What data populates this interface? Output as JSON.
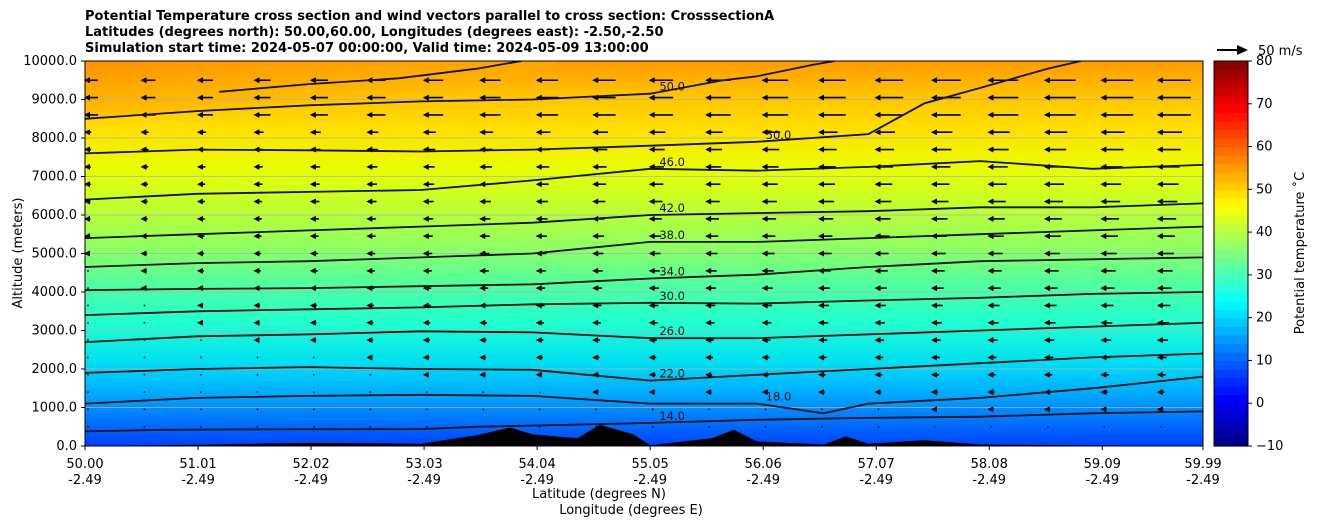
{
  "chart_data": {
    "type": "contourf",
    "title_lines": [
      "Potential Temperature cross section and wind vectors parallel to cross section: CrosssectionA",
      "Latitudes (degrees north): 50.00,60.00, Longitudes (degrees east): -2.50,-2.50",
      "Simulation start time: 2024-05-07 00:00:00, Valid time: 2024-05-09 13:00:00"
    ],
    "ylabel": "Altitude (meters)",
    "xlabel_lat": "Latitude (degrees N)",
    "xlabel_lon": "Longitude (degrees E)",
    "ylim": [
      0,
      10000
    ],
    "xlim": [
      50.0,
      59.99
    ],
    "y_ticks": [
      "0.0",
      "1000.0",
      "2000.0",
      "3000.0",
      "4000.0",
      "5000.0",
      "6000.0",
      "7000.0",
      "8000.0",
      "9000.0",
      "10000.0"
    ],
    "x_ticks_lat": [
      "50.00",
      "51.01",
      "52.02",
      "53.03",
      "54.04",
      "55.05",
      "56.06",
      "57.07",
      "58.08",
      "59.09",
      "59.99"
    ],
    "x_ticks_lon": [
      "-2.49",
      "-2.49",
      "-2.49",
      "-2.49",
      "-2.49",
      "-2.49",
      "-2.49",
      "-2.49",
      "-2.49",
      "-2.49",
      "-2.49"
    ],
    "grid": "horizontal",
    "colorbar": {
      "label": "Potential temperature ˚C",
      "range": [
        -10,
        80
      ],
      "ticks": [
        "−10",
        "0",
        "10",
        "20",
        "30",
        "40",
        "50",
        "60",
        "70",
        "80"
      ],
      "colormap": "jet"
    },
    "quiver_key": "50 m/s",
    "contours": [
      {
        "level": 14.0,
        "label": "14.0",
        "points": [
          [
            50.0,
            380
          ],
          [
            50.7,
            420
          ],
          [
            51.5,
            430
          ],
          [
            53.0,
            440
          ],
          [
            53.5,
            500
          ],
          [
            54.5,
            560
          ],
          [
            55.05,
            600
          ],
          [
            56.0,
            680
          ],
          [
            57.0,
            730
          ],
          [
            58.0,
            760
          ],
          [
            59.0,
            850
          ],
          [
            59.99,
            900
          ]
        ]
      },
      {
        "level": 18.0,
        "label": "18.0",
        "points": [
          [
            50.0,
            1100
          ],
          [
            51.0,
            1250
          ],
          [
            52.0,
            1300
          ],
          [
            53.0,
            1330
          ],
          [
            54.0,
            1300
          ],
          [
            55.05,
            1100
          ],
          [
            56.0,
            1100
          ],
          [
            56.6,
            850
          ],
          [
            57.0,
            1100
          ],
          [
            58.0,
            1250
          ],
          [
            59.0,
            1500
          ],
          [
            59.99,
            1800
          ]
        ]
      },
      {
        "level": 22.0,
        "label": "22.0",
        "points": [
          [
            50.0,
            1900
          ],
          [
            51.0,
            2000
          ],
          [
            52.0,
            2050
          ],
          [
            53.0,
            2000
          ],
          [
            54.0,
            1980
          ],
          [
            55.05,
            1700
          ],
          [
            56.0,
            1850
          ],
          [
            57.0,
            2000
          ],
          [
            58.0,
            2150
          ],
          [
            59.0,
            2300
          ],
          [
            59.99,
            2400
          ]
        ]
      },
      {
        "level": 26.0,
        "label": "26.0",
        "points": [
          [
            50.0,
            2700
          ],
          [
            51.0,
            2850
          ],
          [
            52.0,
            2900
          ],
          [
            53.0,
            2980
          ],
          [
            54.0,
            2950
          ],
          [
            55.05,
            2800
          ],
          [
            56.0,
            2800
          ],
          [
            57.0,
            2900
          ],
          [
            58.0,
            3000
          ],
          [
            59.0,
            3100
          ],
          [
            59.99,
            3200
          ]
        ]
      },
      {
        "level": 30.0,
        "label": "30.0",
        "points": [
          [
            50.0,
            3400
          ],
          [
            51.0,
            3500
          ],
          [
            52.0,
            3550
          ],
          [
            53.0,
            3600
          ],
          [
            54.0,
            3680
          ],
          [
            55.05,
            3720
          ],
          [
            56.0,
            3700
          ],
          [
            57.0,
            3780
          ],
          [
            58.0,
            3850
          ],
          [
            59.0,
            3950
          ],
          [
            59.99,
            4000
          ]
        ]
      },
      {
        "level": 34.0,
        "label": "34.0",
        "points": [
          [
            50.0,
            4050
          ],
          [
            51.0,
            4080
          ],
          [
            52.0,
            4100
          ],
          [
            53.0,
            4150
          ],
          [
            54.0,
            4200
          ],
          [
            55.05,
            4350
          ],
          [
            56.0,
            4450
          ],
          [
            57.0,
            4650
          ],
          [
            58.0,
            4800
          ],
          [
            59.0,
            4850
          ],
          [
            59.99,
            4900
          ]
        ]
      },
      {
        "level": 38.0,
        "label": "38.0",
        "points": [
          [
            50.0,
            4650
          ],
          [
            51.0,
            4750
          ],
          [
            52.0,
            4800
          ],
          [
            53.0,
            4900
          ],
          [
            54.0,
            5000
          ],
          [
            55.05,
            5300
          ],
          [
            56.0,
            5300
          ],
          [
            57.0,
            5400
          ],
          [
            58.0,
            5500
          ],
          [
            59.0,
            5600
          ],
          [
            59.99,
            5700
          ]
        ]
      },
      {
        "level": 42.0,
        "label": "42.0",
        "points": [
          [
            50.0,
            5400
          ],
          [
            51.0,
            5500
          ],
          [
            52.0,
            5600
          ],
          [
            53.0,
            5700
          ],
          [
            54.0,
            5800
          ],
          [
            55.05,
            6000
          ],
          [
            56.0,
            6050
          ],
          [
            57.0,
            6100
          ],
          [
            58.0,
            6200
          ],
          [
            59.0,
            6200
          ],
          [
            59.99,
            6300
          ]
        ]
      },
      {
        "level": 46.0,
        "label": "46.0",
        "points": [
          [
            50.0,
            6400
          ],
          [
            51.0,
            6550
          ],
          [
            52.0,
            6600
          ],
          [
            53.0,
            6650
          ],
          [
            54.0,
            6900
          ],
          [
            55.05,
            7200
          ],
          [
            56.0,
            7150
          ],
          [
            57.0,
            7250
          ],
          [
            58.0,
            7400
          ],
          [
            59.0,
            7200
          ],
          [
            59.99,
            7300
          ]
        ]
      },
      {
        "level": 50.0,
        "label": "50.0",
        "points": [
          [
            50.0,
            7600
          ],
          [
            51.0,
            7700
          ],
          [
            52.0,
            7680
          ],
          [
            53.0,
            7650
          ],
          [
            54.0,
            7700
          ],
          [
            55.05,
            7800
          ],
          [
            56.0,
            7900
          ],
          [
            57.0,
            8100
          ],
          [
            57.5,
            8900
          ],
          [
            58.0,
            9300
          ],
          [
            58.6,
            9800
          ],
          [
            58.9,
            10000
          ]
        ]
      },
      {
        "level": 50.0,
        "label": "50.0",
        "points": [
          [
            50.0,
            8500
          ],
          [
            51.0,
            8700
          ],
          [
            52.0,
            8850
          ],
          [
            53.0,
            8950
          ],
          [
            54.0,
            9000
          ],
          [
            55.05,
            9150
          ],
          [
            55.7,
            9500
          ],
          [
            56.0,
            9600
          ],
          [
            56.5,
            9900
          ],
          [
            56.7,
            10000
          ]
        ]
      },
      {
        "level": 54.0,
        "label": "",
        "points": [
          [
            51.2,
            9200
          ],
          [
            52.0,
            9400
          ],
          [
            52.8,
            9550
          ],
          [
            53.5,
            9800
          ],
          [
            53.9,
            10000
          ]
        ]
      }
    ],
    "terrain": [
      [
        50.0,
        0
      ],
      [
        51.0,
        30
      ],
      [
        51.5,
        60
      ],
      [
        52.0,
        80
      ],
      [
        53.0,
        60
      ],
      [
        53.5,
        280
      ],
      [
        53.8,
        480
      ],
      [
        54.0,
        300
      ],
      [
        54.4,
        200
      ],
      [
        54.6,
        550
      ],
      [
        54.9,
        300
      ],
      [
        55.05,
        20
      ],
      [
        55.6,
        200
      ],
      [
        55.8,
        420
      ],
      [
        56.0,
        120
      ],
      [
        56.6,
        40
      ],
      [
        56.8,
        250
      ],
      [
        57.0,
        60
      ],
      [
        57.5,
        150
      ],
      [
        58.0,
        40
      ],
      [
        59.99,
        0
      ]
    ],
    "wind_u": [
      -12,
      -11,
      -10,
      -9,
      -8,
      -7,
      -6,
      -5,
      -4,
      -3,
      -2,
      -1
    ]
  }
}
